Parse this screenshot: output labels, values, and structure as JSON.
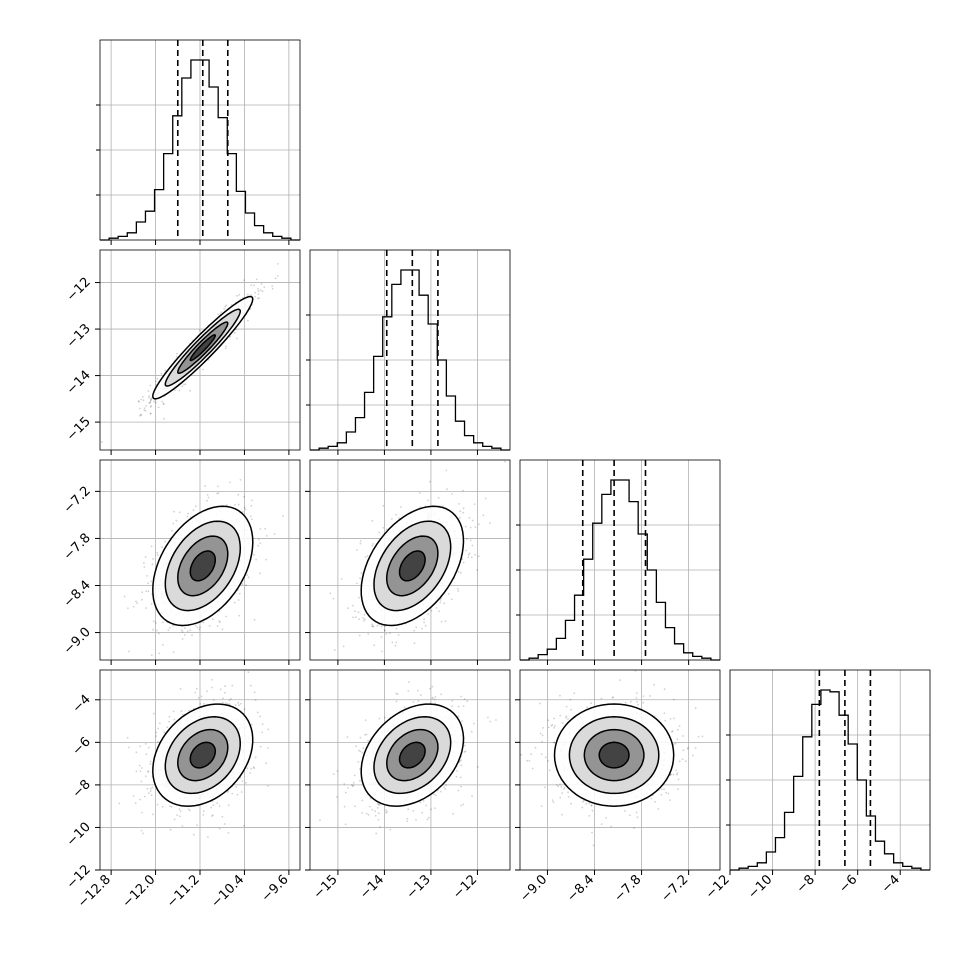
{
  "chart_data": {
    "type": "corner",
    "grid": true,
    "n_params": 4,
    "params": [
      {
        "id": "p0",
        "range": [
          -13.0,
          -9.4
        ],
        "ticks": [
          "-12.8",
          "-12.0",
          "-11.2",
          "-10.4",
          "-9.6"
        ],
        "tick_values": [
          -12.8,
          -12.0,
          -11.2,
          -10.4,
          -9.6
        ],
        "quantiles": [
          -11.6,
          -11.15,
          -10.7
        ],
        "mean": -11.15,
        "sd": 0.45
      },
      {
        "id": "p1",
        "range": [
          -15.6,
          -11.3
        ],
        "ticks": [
          "-15",
          "-14",
          "-13",
          "-12"
        ],
        "tick_values": [
          -15,
          -14,
          -13,
          -12
        ],
        "quantiles": [
          -13.95,
          -13.4,
          -12.85
        ],
        "mean": -13.4,
        "sd": 0.55
      },
      {
        "id": "p2",
        "range": [
          -9.35,
          -6.8
        ],
        "ticks": [
          "-9.0",
          "-8.4",
          "-7.8",
          "-7.2"
        ],
        "tick_values": [
          -9.0,
          -8.4,
          -7.8,
          -7.2
        ],
        "quantiles": [
          -8.55,
          -8.15,
          -7.75
        ],
        "mean": -8.15,
        "sd": 0.38
      },
      {
        "id": "p3",
        "range": [
          -12.0,
          -2.6
        ],
        "ticks": [
          "-12",
          "-10",
          "-8",
          "-6",
          "-4"
        ],
        "tick_values": [
          -12,
          -10,
          -8,
          -6,
          -4
        ],
        "quantiles": [
          -7.8,
          -6.6,
          -5.4
        ],
        "mean": -6.6,
        "sd": 1.2
      }
    ],
    "histograms": [
      {
        "param": "p0",
        "bins": [
          -13.0,
          -9.4
        ],
        "counts": [
          0,
          1,
          2,
          4,
          10,
          16,
          28,
          48,
          69,
          90,
          100,
          100,
          85,
          68,
          48,
          27,
          15,
          8,
          4,
          2,
          1,
          0
        ]
      },
      {
        "param": "p1",
        "bins": [
          -15.6,
          -11.3
        ],
        "counts": [
          0,
          1,
          2,
          4,
          10,
          18,
          32,
          52,
          74,
          92,
          100,
          100,
          86,
          70,
          50,
          30,
          16,
          8,
          4,
          2,
          1,
          0
        ]
      },
      {
        "param": "p2",
        "bins": [
          -9.35,
          -6.8
        ],
        "counts": [
          0,
          1,
          3,
          6,
          12,
          22,
          36,
          56,
          76,
          92,
          100,
          100,
          88,
          70,
          50,
          32,
          18,
          9,
          4,
          2,
          1,
          0
        ]
      },
      {
        "param": "p3",
        "bins": [
          -12.0,
          -2.6
        ],
        "counts": [
          0,
          1,
          2,
          4,
          10,
          18,
          32,
          52,
          74,
          92,
          100,
          99,
          86,
          70,
          50,
          30,
          16,
          9,
          4,
          2,
          1,
          0
        ]
      }
    ],
    "pairs": [
      {
        "x": "p0",
        "y": "p1",
        "correlation": 0.95
      },
      {
        "x": "p0",
        "y": "p2",
        "correlation": 0.4
      },
      {
        "x": "p1",
        "y": "p2",
        "correlation": 0.42
      },
      {
        "x": "p0",
        "y": "p3",
        "correlation": 0.3
      },
      {
        "x": "p1",
        "y": "p3",
        "correlation": 0.32
      },
      {
        "x": "p2",
        "y": "p3",
        "correlation": 0.0
      }
    ],
    "colors": {
      "line": "#000000",
      "grid": "#b0b0b0",
      "scatter": "#000000"
    }
  }
}
